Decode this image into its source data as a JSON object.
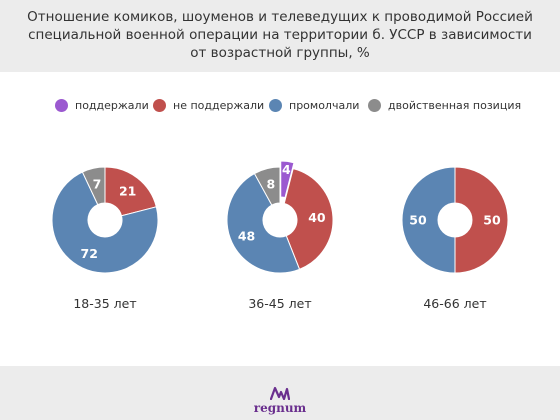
{
  "title": "Отношение комиков, шоуменов и телеведущих к проводимой Россией\nспециальной военной операции на территории б. УССР в зависимости\nот возрастной группы, %",
  "legend": [
    {
      "label": "поддержали",
      "color": "#9b59d0"
    },
    {
      "label": "не поддержали",
      "color": "#c0504d"
    },
    {
      "label": "промолчали",
      "color": "#5b85b3"
    },
    {
      "label": "двойственная позиция",
      "color": "#8c8c8c"
    }
  ],
  "chart_data": {
    "type": "pie",
    "variant": "donut",
    "series_names": [
      "поддержали",
      "не поддержали",
      "промолчали",
      "двойственная позиция"
    ],
    "colors": {
      "поддержали": "#9b59d0",
      "не поддержали": "#c0504d",
      "промолчали": "#5b85b3",
      "двойственная позиция": "#8c8c8c"
    },
    "charts": [
      {
        "category": "18-35 лет",
        "slices": [
          {
            "name": "не поддержали",
            "value": 21
          },
          {
            "name": "промолчали",
            "value": 72
          },
          {
            "name": "двойственная позиция",
            "value": 7
          }
        ]
      },
      {
        "category": "36-45 лет",
        "slices": [
          {
            "name": "поддержали",
            "value": 4,
            "exploded": true
          },
          {
            "name": "не поддержали",
            "value": 40
          },
          {
            "name": "промолчали",
            "value": 48
          },
          {
            "name": "двойственная позиция",
            "value": 8
          }
        ]
      },
      {
        "category": "46-66 лет",
        "slices": [
          {
            "name": "не поддержали",
            "value": 50
          },
          {
            "name": "промолчали",
            "value": 50
          }
        ]
      }
    ],
    "legend_position": "top"
  },
  "logo": {
    "text": "regnum",
    "color": "#6a2f8e"
  }
}
